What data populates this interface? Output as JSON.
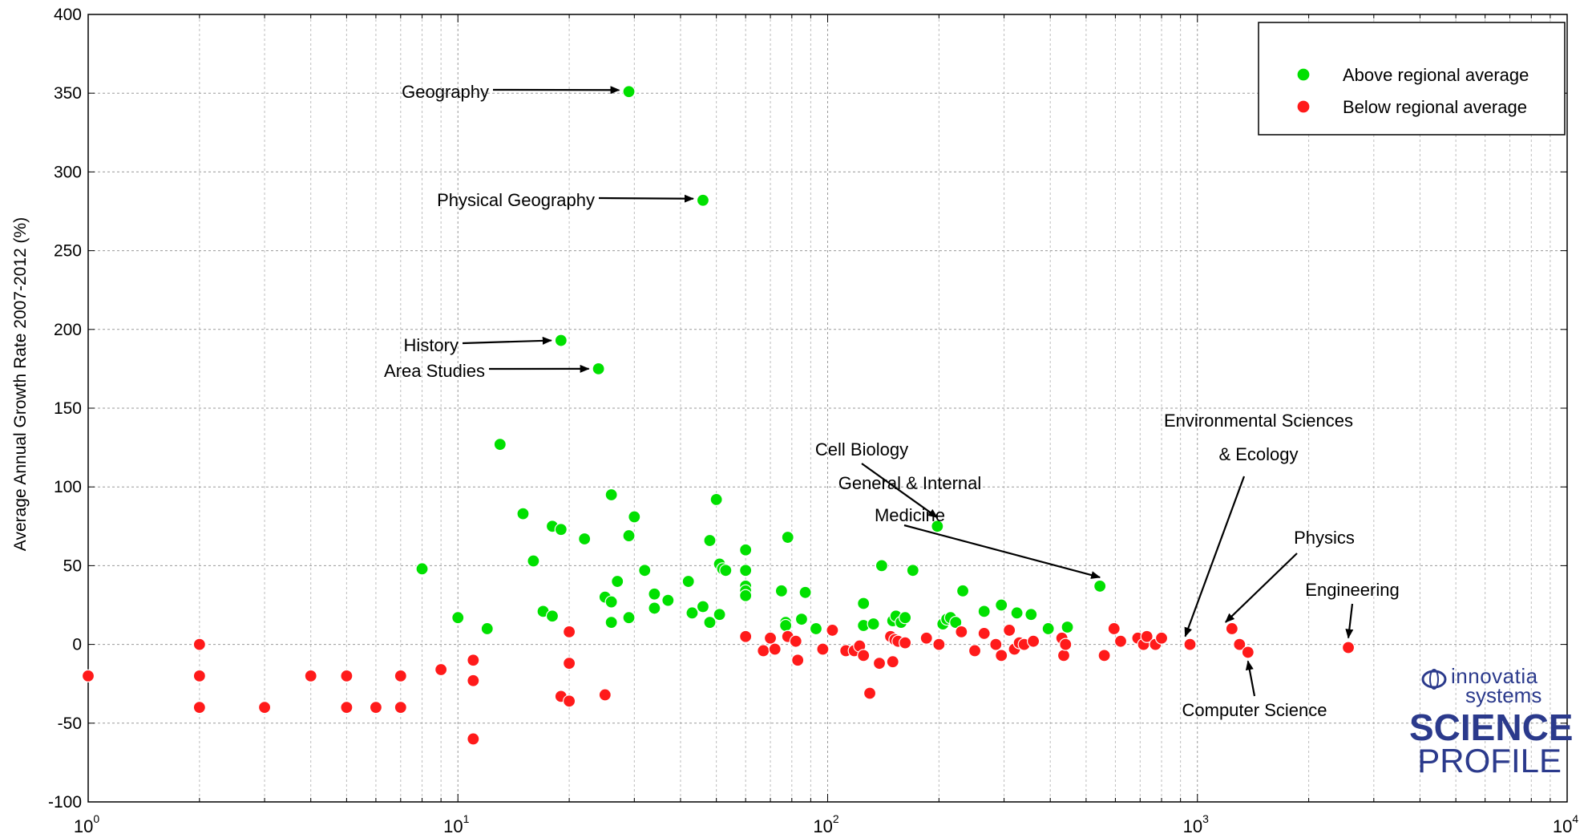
{
  "chart_data": {
    "type": "scatter",
    "title": "",
    "xlabel": "",
    "ylabel": "Average Annual Growth Rate 2007-2012 (%)",
    "x_scale": "log",
    "xlim": [
      1,
      10000
    ],
    "ylim": [
      -100,
      400
    ],
    "y_ticks": [
      "-100",
      "-50",
      "0",
      "50",
      "100",
      "150",
      "200",
      "250",
      "300",
      "350",
      "400"
    ],
    "x_ticks": [
      {
        "base": "10",
        "exp": "0"
      },
      {
        "base": "10",
        "exp": "1"
      },
      {
        "base": "10",
        "exp": "2"
      },
      {
        "base": "10",
        "exp": "3"
      },
      {
        "base": "10",
        "exp": "4"
      }
    ],
    "grid": true,
    "legend_position": "top-right",
    "colors": {
      "above": "#00e000",
      "below": "#ff1a1a"
    },
    "series": [
      {
        "name": "Above regional average",
        "color": "#00e000",
        "points": [
          [
            8,
            48
          ],
          [
            10,
            17
          ],
          [
            12,
            10
          ],
          [
            13,
            127
          ],
          [
            15,
            83
          ],
          [
            16,
            53
          ],
          [
            17,
            21
          ],
          [
            18,
            18
          ],
          [
            18,
            75
          ],
          [
            19,
            73
          ],
          [
            22,
            67
          ],
          [
            25,
            30
          ],
          [
            26,
            27
          ],
          [
            26,
            14
          ],
          [
            26,
            95
          ],
          [
            27,
            40
          ],
          [
            29,
            17
          ],
          [
            29,
            69
          ],
          [
            30,
            81
          ],
          [
            32,
            47
          ],
          [
            34,
            32
          ],
          [
            34,
            23
          ],
          [
            37,
            28
          ],
          [
            42,
            40
          ],
          [
            43,
            20
          ],
          [
            46,
            24
          ],
          [
            48,
            14
          ],
          [
            48,
            66
          ],
          [
            50,
            92
          ],
          [
            51,
            19
          ],
          [
            51,
            51
          ],
          [
            52,
            48
          ],
          [
            53,
            47
          ],
          [
            60,
            60
          ],
          [
            60,
            47
          ],
          [
            60,
            37
          ],
          [
            60,
            34
          ],
          [
            60,
            31
          ],
          [
            75,
            34
          ],
          [
            77,
            14
          ],
          [
            77,
            12
          ],
          [
            78,
            68
          ],
          [
            85,
            16
          ],
          [
            87,
            33
          ],
          [
            93,
            10
          ],
          [
            125,
            26
          ],
          [
            125,
            12
          ],
          [
            133,
            13
          ],
          [
            140,
            50
          ],
          [
            150,
            15
          ],
          [
            153,
            18
          ],
          [
            158,
            14
          ],
          [
            162,
            17
          ],
          [
            170,
            47
          ],
          [
            205,
            13
          ],
          [
            210,
            16
          ],
          [
            215,
            17
          ],
          [
            222,
            14
          ],
          [
            232,
            34
          ],
          [
            265,
            21
          ],
          [
            295,
            25
          ],
          [
            325,
            20
          ],
          [
            355,
            19
          ],
          [
            395,
            10
          ],
          [
            445,
            11
          ],
          [
            545,
            37
          ],
          [
            19,
            193
          ],
          [
            24,
            175
          ],
          [
            29,
            351
          ],
          [
            46,
            282
          ],
          [
            198,
            75
          ]
        ]
      },
      {
        "name": "Below regional average",
        "color": "#ff1a1a",
        "points": [
          [
            1,
            -20
          ],
          [
            2,
            0
          ],
          [
            2,
            -20
          ],
          [
            2,
            -40
          ],
          [
            3,
            -40
          ],
          [
            4,
            -20
          ],
          [
            5,
            -20
          ],
          [
            5,
            -40
          ],
          [
            6,
            -40
          ],
          [
            7,
            -20
          ],
          [
            7,
            -40
          ],
          [
            9,
            -16
          ],
          [
            11,
            -10
          ],
          [
            11,
            -23
          ],
          [
            11,
            -60
          ],
          [
            19,
            -33
          ],
          [
            20,
            -36
          ],
          [
            20,
            8
          ],
          [
            20,
            -12
          ],
          [
            25,
            -32
          ],
          [
            60,
            5
          ],
          [
            67,
            -4
          ],
          [
            70,
            4
          ],
          [
            72,
            -3
          ],
          [
            78,
            5
          ],
          [
            82,
            2
          ],
          [
            83,
            -10
          ],
          [
            97,
            -3
          ],
          [
            103,
            9
          ],
          [
            112,
            -4
          ],
          [
            118,
            -4
          ],
          [
            122,
            -1
          ],
          [
            125,
            -7
          ],
          [
            130,
            -31
          ],
          [
            138,
            -12
          ],
          [
            148,
            5
          ],
          [
            150,
            -11
          ],
          [
            152,
            3
          ],
          [
            155,
            2
          ],
          [
            162,
            1
          ],
          [
            185,
            4
          ],
          [
            200,
            0
          ],
          [
            230,
            8
          ],
          [
            250,
            -4
          ],
          [
            265,
            7
          ],
          [
            285,
            0
          ],
          [
            295,
            -7
          ],
          [
            310,
            9
          ],
          [
            320,
            -3
          ],
          [
            330,
            1
          ],
          [
            340,
            0
          ],
          [
            360,
            2
          ],
          [
            430,
            4
          ],
          [
            435,
            -7
          ],
          [
            440,
            0
          ],
          [
            560,
            -7
          ],
          [
            595,
            10
          ],
          [
            620,
            2
          ],
          [
            690,
            4
          ],
          [
            715,
            0
          ],
          [
            730,
            5
          ],
          [
            770,
            0
          ],
          [
            800,
            4
          ],
          [
            955,
            0
          ],
          [
            1240,
            10
          ],
          [
            1300,
            0
          ],
          [
            1370,
            -5
          ],
          [
            2560,
            -2
          ]
        ]
      }
    ],
    "annotations": [
      {
        "lines": [
          "Geography"
        ],
        "x": 29,
        "y": 351
      },
      {
        "lines": [
          "Physical Geography"
        ],
        "x": 46,
        "y": 282
      },
      {
        "lines": [
          "History"
        ],
        "x": 19,
        "y": 193
      },
      {
        "lines": [
          "Area Studies"
        ],
        "x": 24,
        "y": 175
      },
      {
        "lines": [
          "Cell Biology"
        ],
        "x": 198,
        "y": 75
      },
      {
        "lines": [
          "General & Internal",
          "Medicine"
        ],
        "x": 545,
        "y": 37
      },
      {
        "lines": [
          "Environmental Sciences",
          "& Ecology"
        ],
        "x": 955,
        "y": 0
      },
      {
        "lines": [
          "Physics"
        ],
        "x": 1240,
        "y": 10
      },
      {
        "lines": [
          "Engineering"
        ],
        "x": 2560,
        "y": -2
      },
      {
        "lines": [
          "Computer Science"
        ],
        "x": 1370,
        "y": -5
      }
    ]
  },
  "logo": {
    "line1": "innovatia",
    "line2": "systems",
    "line3": "SCIENCE",
    "line4": "PROFILE"
  }
}
